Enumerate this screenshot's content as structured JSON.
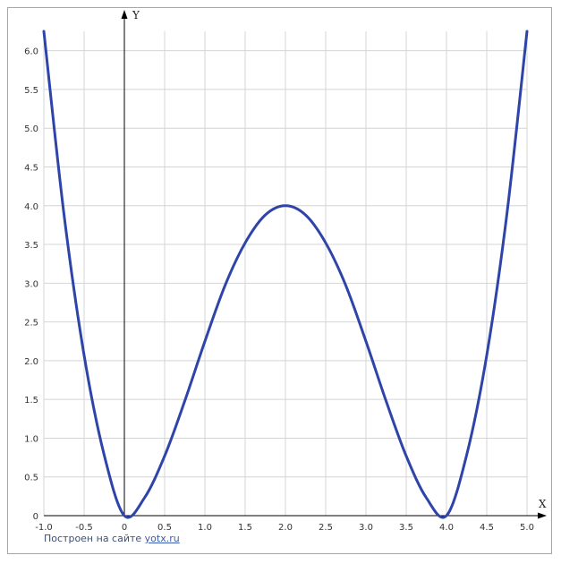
{
  "chart_data": {
    "type": "line",
    "xlabel": "X",
    "ylabel": "Y",
    "xlim": [
      -1.0,
      5.0
    ],
    "ylim": [
      0,
      6.25
    ],
    "grid": true,
    "x_ticks": [
      "-1.0",
      "-0.5",
      "0",
      "0.5",
      "1.0",
      "1.5",
      "2.0",
      "2.5",
      "3.0",
      "3.5",
      "4.0",
      "4.5",
      "5.0"
    ],
    "y_ticks": [
      "0",
      "0.5",
      "1.0",
      "1.5",
      "2.0",
      "2.5",
      "3.0",
      "3.5",
      "4.0",
      "4.5",
      "5.0",
      "5.5",
      "6.0"
    ],
    "series": [
      {
        "color": "#2e44a8",
        "x": [
          -1.0,
          -0.75,
          -0.5,
          -0.25,
          0,
          0.25,
          0.5,
          0.75,
          1.0,
          1.25,
          1.5,
          1.75,
          2.0,
          2.25,
          2.5,
          2.75,
          3.0,
          3.25,
          3.5,
          3.75,
          4.0,
          4.25,
          4.5,
          4.75,
          5.0
        ],
        "y": [
          6.25,
          3.89,
          2.07,
          0.78,
          0.0,
          0.23,
          0.77,
          1.48,
          2.25,
          2.97,
          3.52,
          3.88,
          4.0,
          3.88,
          3.52,
          2.97,
          2.25,
          1.48,
          0.77,
          0.23,
          0.0,
          0.78,
          2.07,
          3.89,
          6.25
        ]
      }
    ]
  },
  "footer": {
    "text": "Построен на сайте",
    "link": "yotx.ru"
  }
}
